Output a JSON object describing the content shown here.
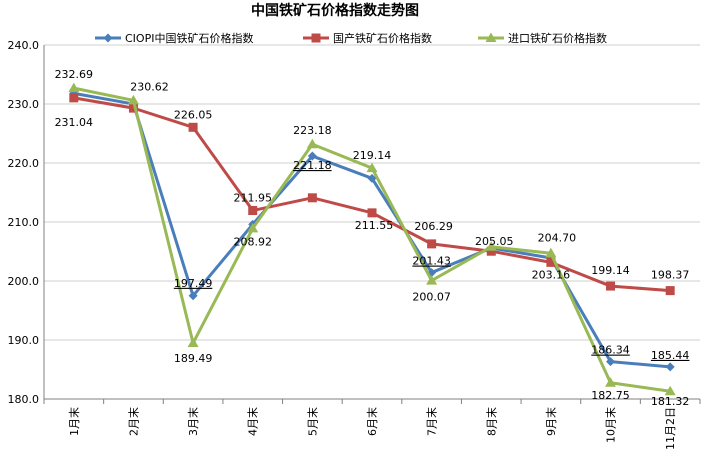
{
  "chart_data": {
    "type": "line",
    "title": "中国铁矿石价格指数走势图",
    "categories": [
      "1月末",
      "2月末",
      "3月末",
      "4月末",
      "5月末",
      "6月末",
      "7月末",
      "8月末",
      "9月末",
      "10月末",
      "11月2日"
    ],
    "ylim": [
      180,
      240
    ],
    "yticks": [
      "180.0",
      "190.0",
      "200.0",
      "210.0",
      "220.0",
      "230.0",
      "240.0"
    ],
    "grid": true,
    "legend_position": "top",
    "series": [
      {
        "name": "CIOPI中国铁矿石价格指数",
        "color": "#4a7ebb",
        "marker": "diamond",
        "values": [
          231.8,
          230.0,
          197.49,
          209.6,
          221.18,
          217.4,
          201.43,
          205.6,
          203.9,
          186.34,
          185.44
        ],
        "labels": [
          null,
          null,
          "197.49",
          null,
          "221.18",
          null,
          "201.43",
          null,
          null,
          "186.34",
          "185.44"
        ]
      },
      {
        "name": "国产铁矿石价格指数",
        "color": "#be4b48",
        "marker": "square",
        "values": [
          231.04,
          229.3,
          226.05,
          211.95,
          214.1,
          211.55,
          206.29,
          205.05,
          203.16,
          199.14,
          198.37
        ],
        "labels": [
          "231.04",
          null,
          "226.05",
          "211.95",
          null,
          "211.55",
          "206.29",
          "205.05",
          "203.16",
          "199.14",
          "198.37"
        ]
      },
      {
        "name": "进口铁矿石价格指数",
        "color": "#98b954",
        "marker": "triangle",
        "values": [
          232.69,
          230.62,
          189.49,
          208.92,
          223.18,
          219.14,
          200.07,
          205.8,
          204.7,
          182.75,
          181.32
        ],
        "labels": [
          "232.69",
          "230.62",
          "189.49",
          "208.92",
          "223.18",
          "219.14",
          "200.07",
          null,
          "204.70",
          "182.75",
          "181.32"
        ]
      }
    ]
  }
}
